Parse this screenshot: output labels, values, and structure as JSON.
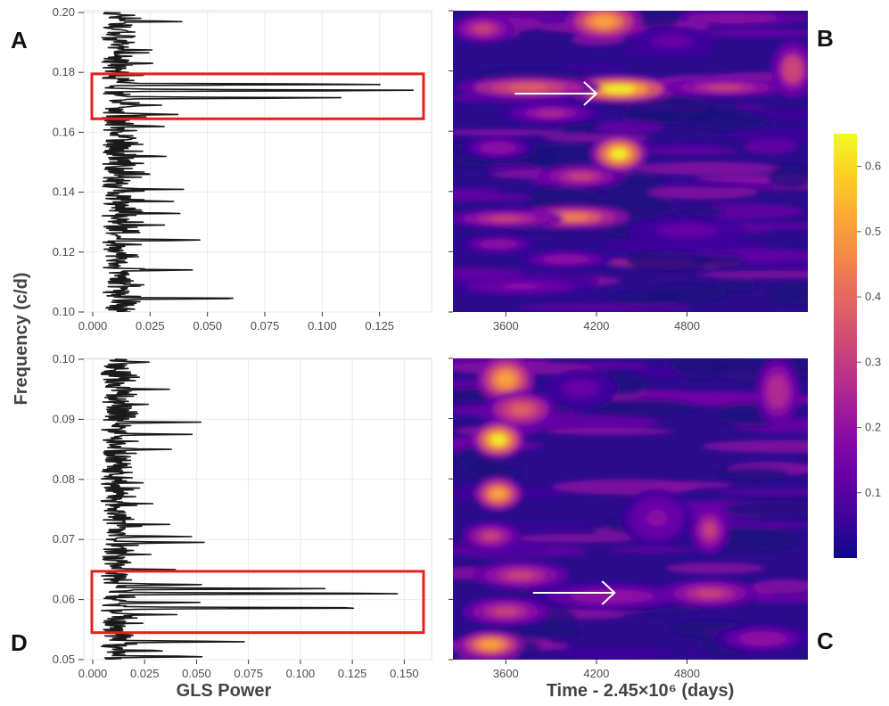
{
  "figure": {
    "panel_labels": [
      "A",
      "B",
      "C",
      "D"
    ],
    "y_axis_title": "Frequency (c/d)",
    "x_axis_title_left": "GLS Power",
    "x_axis_title_right": "Time - 2.45×10⁶ (days)",
    "colors": {
      "line": "#1a1a1a",
      "highlight_box": "#e3201b",
      "arrow": "#ffffff",
      "grid": "#ebebeb",
      "colormap": [
        "#0d0887",
        "#41049d",
        "#6a00a8",
        "#8f0da4",
        "#b12a90",
        "#cc4778",
        "#e16462",
        "#f2844b",
        "#fca636",
        "#fcce25",
        "#f0f921"
      ]
    }
  },
  "chart_data": [
    {
      "id": "A",
      "type": "line",
      "orientation": "horizontal-power",
      "xlabel": "",
      "ylabel": "Frequency (c/d)",
      "xlim": [
        0,
        0.143
      ],
      "ylim": [
        0.1,
        0.2
      ],
      "x_ticks": [
        "0.000",
        "0.025",
        "0.050",
        "0.075",
        "0.100",
        "0.125"
      ],
      "y_ticks": [
        "0.10",
        "0.12",
        "0.14",
        "0.16",
        "0.18",
        "0.20"
      ],
      "highlight": {
        "freq_range": [
          0.1645,
          0.1795
        ],
        "power_range": [
          0.0,
          0.143
        ]
      },
      "peaks": [
        {
          "freq": 0.199,
          "power": 0.015
        },
        {
          "freq": 0.197,
          "power": 0.037
        },
        {
          "freq": 0.192,
          "power": 0.018
        },
        {
          "freq": 0.1875,
          "power": 0.022
        },
        {
          "freq": 0.183,
          "power": 0.026
        },
        {
          "freq": 0.176,
          "power": 0.128
        },
        {
          "freq": 0.174,
          "power": 0.142
        },
        {
          "freq": 0.1715,
          "power": 0.1
        },
        {
          "freq": 0.169,
          "power": 0.028
        },
        {
          "freq": 0.166,
          "power": 0.034
        },
        {
          "freq": 0.162,
          "power": 0.03
        },
        {
          "freq": 0.158,
          "power": 0.02
        },
        {
          "freq": 0.152,
          "power": 0.032
        },
        {
          "freq": 0.146,
          "power": 0.022
        },
        {
          "freq": 0.141,
          "power": 0.028
        },
        {
          "freq": 0.137,
          "power": 0.027
        },
        {
          "freq": 0.133,
          "power": 0.033
        },
        {
          "freq": 0.129,
          "power": 0.028
        },
        {
          "freq": 0.124,
          "power": 0.044
        },
        {
          "freq": 0.119,
          "power": 0.018
        },
        {
          "freq": 0.114,
          "power": 0.041
        },
        {
          "freq": 0.109,
          "power": 0.022
        },
        {
          "freq": 0.1045,
          "power": 0.064
        },
        {
          "freq": 0.101,
          "power": 0.016
        }
      ]
    },
    {
      "id": "B",
      "type": "heatmap",
      "xlabel": "",
      "ylabel": "Frequency (c/d)",
      "xlim": [
        3250,
        5600
      ],
      "ylim": [
        0.1,
        0.2
      ],
      "x_ticks": [
        "3600",
        "4200",
        "4800"
      ],
      "arrow": {
        "from": [
          3660,
          0.1725
        ],
        "to": [
          4200,
          0.1725
        ]
      },
      "blobs": [
        {
          "t": 4250,
          "f": 0.1965,
          "sigma_t": 160,
          "sigma_f": 0.004,
          "value": 0.55
        },
        {
          "t": 3450,
          "f": 0.194,
          "sigma_t": 130,
          "sigma_f": 0.003,
          "value": 0.3
        },
        {
          "t": 4350,
          "f": 0.174,
          "sigma_t": 240,
          "sigma_f": 0.003,
          "value": 0.62
        },
        {
          "t": 3750,
          "f": 0.1745,
          "sigma_t": 300,
          "sigma_f": 0.0025,
          "value": 0.4
        },
        {
          "t": 5050,
          "f": 0.1745,
          "sigma_t": 250,
          "sigma_f": 0.002,
          "value": 0.3
        },
        {
          "t": 5500,
          "f": 0.1805,
          "sigma_t": 90,
          "sigma_f": 0.006,
          "value": 0.35
        },
        {
          "t": 3900,
          "f": 0.166,
          "sigma_t": 220,
          "sigma_f": 0.0025,
          "value": 0.25
        },
        {
          "t": 4350,
          "f": 0.1525,
          "sigma_t": 120,
          "sigma_f": 0.004,
          "value": 0.62
        },
        {
          "t": 3550,
          "f": 0.1545,
          "sigma_t": 150,
          "sigma_f": 0.0025,
          "value": 0.22
        },
        {
          "t": 4100,
          "f": 0.145,
          "sigma_t": 180,
          "sigma_f": 0.0025,
          "value": 0.3
        },
        {
          "t": 4050,
          "f": 0.1315,
          "sigma_t": 230,
          "sigma_f": 0.0025,
          "value": 0.48
        },
        {
          "t": 3600,
          "f": 0.131,
          "sigma_t": 240,
          "sigma_f": 0.002,
          "value": 0.3
        },
        {
          "t": 3550,
          "f": 0.1225,
          "sigma_t": 160,
          "sigma_f": 0.002,
          "value": 0.22
        },
        {
          "t": 4000,
          "f": 0.1175,
          "sigma_t": 200,
          "sigma_f": 0.002,
          "value": 0.2
        },
        {
          "t": 3700,
          "f": 0.1085,
          "sigma_t": 300,
          "sigma_f": 0.002,
          "value": 0.18
        },
        {
          "t": 4800,
          "f": 0.127,
          "sigma_t": 250,
          "sigma_f": 0.003,
          "value": 0.15
        },
        {
          "t": 4700,
          "f": 0.19,
          "sigma_t": 180,
          "sigma_f": 0.003,
          "value": 0.14
        }
      ]
    },
    {
      "id": "C",
      "type": "heatmap",
      "xlabel": "Time - 2.45×10⁶ (days)",
      "ylabel": "Frequency (c/d)",
      "xlim": [
        3250,
        5600
      ],
      "ylim": [
        0.05,
        0.1
      ],
      "x_ticks": [
        "3600",
        "4200",
        "4800"
      ],
      "arrow": {
        "from": [
          3780,
          0.0611
        ],
        "to": [
          4320,
          0.0611
        ]
      },
      "blobs": [
        {
          "t": 3600,
          "f": 0.0965,
          "sigma_t": 120,
          "sigma_f": 0.0025,
          "value": 0.5
        },
        {
          "t": 3700,
          "f": 0.0915,
          "sigma_t": 150,
          "sigma_f": 0.002,
          "value": 0.42
        },
        {
          "t": 3550,
          "f": 0.0865,
          "sigma_t": 110,
          "sigma_f": 0.002,
          "value": 0.62
        },
        {
          "t": 3550,
          "f": 0.0775,
          "sigma_t": 100,
          "sigma_f": 0.0018,
          "value": 0.5
        },
        {
          "t": 3500,
          "f": 0.0705,
          "sigma_t": 120,
          "sigma_f": 0.0015,
          "value": 0.3
        },
        {
          "t": 3700,
          "f": 0.064,
          "sigma_t": 200,
          "sigma_f": 0.0015,
          "value": 0.3
        },
        {
          "t": 3600,
          "f": 0.058,
          "sigma_t": 180,
          "sigma_f": 0.0015,
          "value": 0.32
        },
        {
          "t": 3500,
          "f": 0.0525,
          "sigma_t": 140,
          "sigma_f": 0.0015,
          "value": 0.5
        },
        {
          "t": 4300,
          "f": 0.0605,
          "sigma_t": 350,
          "sigma_f": 0.0015,
          "value": 0.22
        },
        {
          "t": 4950,
          "f": 0.061,
          "sigma_t": 200,
          "sigma_f": 0.0015,
          "value": 0.3
        },
        {
          "t": 5400,
          "f": 0.0945,
          "sigma_t": 90,
          "sigma_f": 0.0035,
          "value": 0.28
        },
        {
          "t": 4950,
          "f": 0.0715,
          "sigma_t": 80,
          "sigma_f": 0.0025,
          "value": 0.3
        },
        {
          "t": 4600,
          "f": 0.0735,
          "sigma_t": 150,
          "sigma_f": 0.003,
          "value": 0.18
        },
        {
          "t": 4100,
          "f": 0.095,
          "sigma_t": 150,
          "sigma_f": 0.002,
          "value": 0.15
        },
        {
          "t": 5300,
          "f": 0.0535,
          "sigma_t": 200,
          "sigma_f": 0.0015,
          "value": 0.2
        }
      ]
    },
    {
      "id": "D",
      "type": "line",
      "orientation": "horizontal-power",
      "xlabel": "GLS Power",
      "ylabel": "Frequency (c/d)",
      "xlim": [
        0,
        0.158
      ],
      "ylim": [
        0.05,
        0.1
      ],
      "x_ticks": [
        "0.000",
        "0.025",
        "0.050",
        "0.075",
        "0.100",
        "0.125",
        "0.150"
      ],
      "y_ticks": [
        "0.05",
        "0.06",
        "0.07",
        "0.08",
        "0.09",
        "0.10"
      ],
      "highlight": {
        "freq_range": [
          0.0545,
          0.0647
        ],
        "power_range": [
          0.0,
          0.158
        ]
      },
      "peaks": [
        {
          "freq": 0.0995,
          "power": 0.026
        },
        {
          "freq": 0.097,
          "power": 0.02
        },
        {
          "freq": 0.095,
          "power": 0.033
        },
        {
          "freq": 0.0925,
          "power": 0.025
        },
        {
          "freq": 0.0895,
          "power": 0.045
        },
        {
          "freq": 0.0875,
          "power": 0.04
        },
        {
          "freq": 0.085,
          "power": 0.035
        },
        {
          "freq": 0.082,
          "power": 0.016
        },
        {
          "freq": 0.0795,
          "power": 0.018
        },
        {
          "freq": 0.076,
          "power": 0.02
        },
        {
          "freq": 0.0725,
          "power": 0.028
        },
        {
          "freq": 0.0705,
          "power": 0.045
        },
        {
          "freq": 0.0695,
          "power": 0.052
        },
        {
          "freq": 0.0675,
          "power": 0.025
        },
        {
          "freq": 0.065,
          "power": 0.035
        },
        {
          "freq": 0.0625,
          "power": 0.05
        },
        {
          "freq": 0.0618,
          "power": 0.108
        },
        {
          "freq": 0.061,
          "power": 0.155
        },
        {
          "freq": 0.0595,
          "power": 0.045
        },
        {
          "freq": 0.0586,
          "power": 0.14
        },
        {
          "freq": 0.0575,
          "power": 0.03
        },
        {
          "freq": 0.053,
          "power": 0.072
        },
        {
          "freq": 0.0515,
          "power": 0.03
        },
        {
          "freq": 0.0505,
          "power": 0.052
        }
      ]
    }
  ],
  "colorbar": {
    "ticks": [
      "0.1",
      "0.2",
      "0.3",
      "0.4",
      "0.5",
      "0.6"
    ],
    "range": [
      0.0,
      0.65
    ]
  }
}
